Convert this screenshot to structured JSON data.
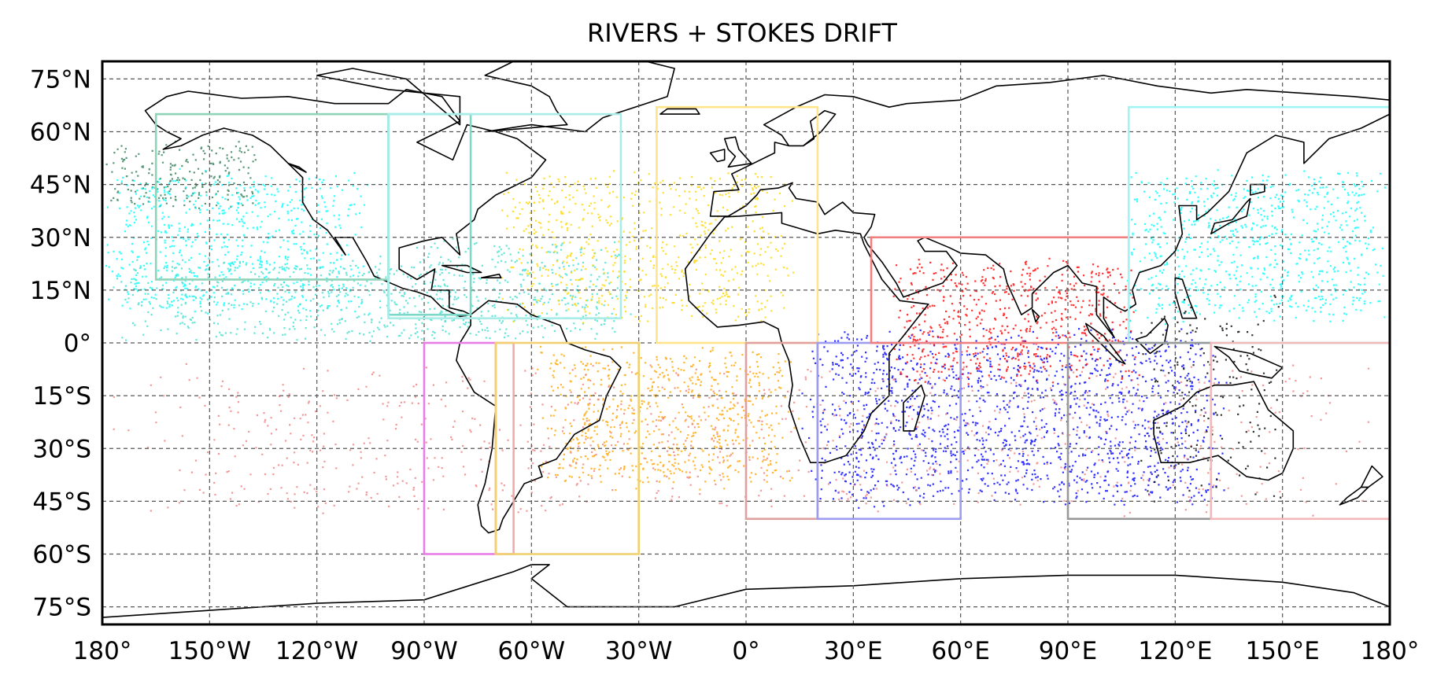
{
  "map": {
    "title": "RIVERS + STOKES DRIFT",
    "projection": "equirectangular",
    "extent": {
      "lon": [
        -180,
        180
      ],
      "lat": [
        -80,
        80
      ]
    },
    "gridlines": "dashed",
    "lon_ticks": [
      {
        "value": -180,
        "label": "180°"
      },
      {
        "value": -150,
        "label": "150°W"
      },
      {
        "value": -120,
        "label": "120°W"
      },
      {
        "value": -90,
        "label": "90°W"
      },
      {
        "value": -60,
        "label": "60°W"
      },
      {
        "value": -30,
        "label": "30°W"
      },
      {
        "value": 0,
        "label": "0°"
      },
      {
        "value": 30,
        "label": "30°E"
      },
      {
        "value": 60,
        "label": "60°E"
      },
      {
        "value": 90,
        "label": "90°E"
      },
      {
        "value": 120,
        "label": "120°E"
      },
      {
        "value": 150,
        "label": "150°E"
      },
      {
        "value": 180,
        "label": "180°"
      }
    ],
    "lat_ticks": [
      {
        "value": 75,
        "label": "75°N"
      },
      {
        "value": 60,
        "label": "60°N"
      },
      {
        "value": 45,
        "label": "45°N"
      },
      {
        "value": 30,
        "label": "30°N"
      },
      {
        "value": 15,
        "label": "15°N"
      },
      {
        "value": 0,
        "label": "0°"
      },
      {
        "value": -15,
        "label": "15°S"
      },
      {
        "value": -30,
        "label": "30°S"
      },
      {
        "value": -45,
        "label": "45°S"
      },
      {
        "value": -60,
        "label": "60°S"
      },
      {
        "value": -75,
        "label": "75°S"
      }
    ],
    "source_regions": [
      {
        "id": "north-pacific-east",
        "color": "#8fd3b8",
        "lon": [
          -165,
          -100
        ],
        "lat": [
          18,
          65
        ]
      },
      {
        "id": "central-america",
        "color": "#7ed8c8",
        "lon": [
          -100,
          -77
        ],
        "lat": [
          8,
          65
        ]
      },
      {
        "id": "north-atlantic-west",
        "color": "#a8ece8",
        "lon": [
          -100,
          -35
        ],
        "lat": [
          7,
          65
        ]
      },
      {
        "id": "north-atlantic-east",
        "color": "#ffe48a",
        "lon": [
          -25,
          20
        ],
        "lat": [
          0,
          67
        ]
      },
      {
        "id": "south-america-pacific",
        "color": "#e87de8",
        "lon": [
          -90,
          -70
        ],
        "lat": [
          -60,
          0
        ]
      },
      {
        "id": "south-america-chile",
        "color": "#f4a8a8",
        "lon": [
          -70,
          -65
        ],
        "lat": [
          -60,
          0
        ]
      },
      {
        "id": "south-atlantic",
        "color": "#f0d070",
        "lon": [
          -70,
          -30
        ],
        "lat": [
          -60,
          0
        ]
      },
      {
        "id": "africa-west",
        "color": "#e0a0a0",
        "lon": [
          0,
          20
        ],
        "lat": [
          -50,
          0
        ]
      },
      {
        "id": "africa-east",
        "color": "#9c9cf0",
        "lon": [
          20,
          60
        ],
        "lat": [
          -50,
          0
        ]
      },
      {
        "id": "north-indian",
        "color": "#f08080",
        "lon": [
          35,
          107
        ],
        "lat": [
          0,
          30
        ]
      },
      {
        "id": "west-pacific",
        "color": "#a0f4f4",
        "lon": [
          107,
          180
        ],
        "lat": [
          0,
          67
        ]
      },
      {
        "id": "australia-west",
        "color": "#999999",
        "lon": [
          90,
          130
        ],
        "lat": [
          -50,
          0
        ]
      },
      {
        "id": "australia-east",
        "color": "#f4b8b8",
        "lon": [
          130,
          180
        ],
        "lat": [
          -50,
          0
        ]
      }
    ],
    "particle_clouds": [
      {
        "id": "n-pacific-dark",
        "color": "#2e7d55",
        "lon": [
          -180,
          -135
        ],
        "lat": [
          38,
          58
        ],
        "density": 0.9
      },
      {
        "id": "n-pacific-cyan",
        "color": "#00ffff",
        "lon": [
          -180,
          -105
        ],
        "lat": [
          8,
          50
        ],
        "density": 0.85
      },
      {
        "id": "e-pacific-turquoise",
        "color": "#40e0d0",
        "lon": [
          -180,
          -80
        ],
        "lat": [
          0,
          25
        ],
        "density": 0.7
      },
      {
        "id": "caribbean-turquoise",
        "color": "#40e0d0",
        "lon": [
          -95,
          -30
        ],
        "lat": [
          0,
          30
        ],
        "density": 0.8
      },
      {
        "id": "n-atlantic-yellow",
        "color": "#ffd700",
        "lon": [
          -70,
          15
        ],
        "lat": [
          5,
          50
        ],
        "density": 0.65
      },
      {
        "id": "s-atlantic-orange",
        "color": "#ffa500",
        "lon": [
          -60,
          15
        ],
        "lat": [
          -42,
          0
        ],
        "density": 0.9
      },
      {
        "id": "indian-blue",
        "color": "#0000ff",
        "lon": [
          15,
          135
        ],
        "lat": [
          -47,
          5
        ],
        "density": 0.95
      },
      {
        "id": "n-indian-red",
        "color": "#ff0000",
        "lon": [
          40,
          110
        ],
        "lat": [
          -12,
          25
        ],
        "density": 0.9
      },
      {
        "id": "w-pacific-cyan",
        "color": "#00ffff",
        "lon": [
          105,
          180
        ],
        "lat": [
          5,
          50
        ],
        "density": 0.85
      },
      {
        "id": "s-pacific-pink",
        "color": "#f08080",
        "lon": [
          -180,
          180
        ],
        "lat": [
          -50,
          -5
        ],
        "density": 0.2
      },
      {
        "id": "indonesia-black",
        "color": "#000000",
        "lon": [
          110,
          150
        ],
        "lat": [
          -45,
          15
        ],
        "density": 0.3
      }
    ]
  }
}
